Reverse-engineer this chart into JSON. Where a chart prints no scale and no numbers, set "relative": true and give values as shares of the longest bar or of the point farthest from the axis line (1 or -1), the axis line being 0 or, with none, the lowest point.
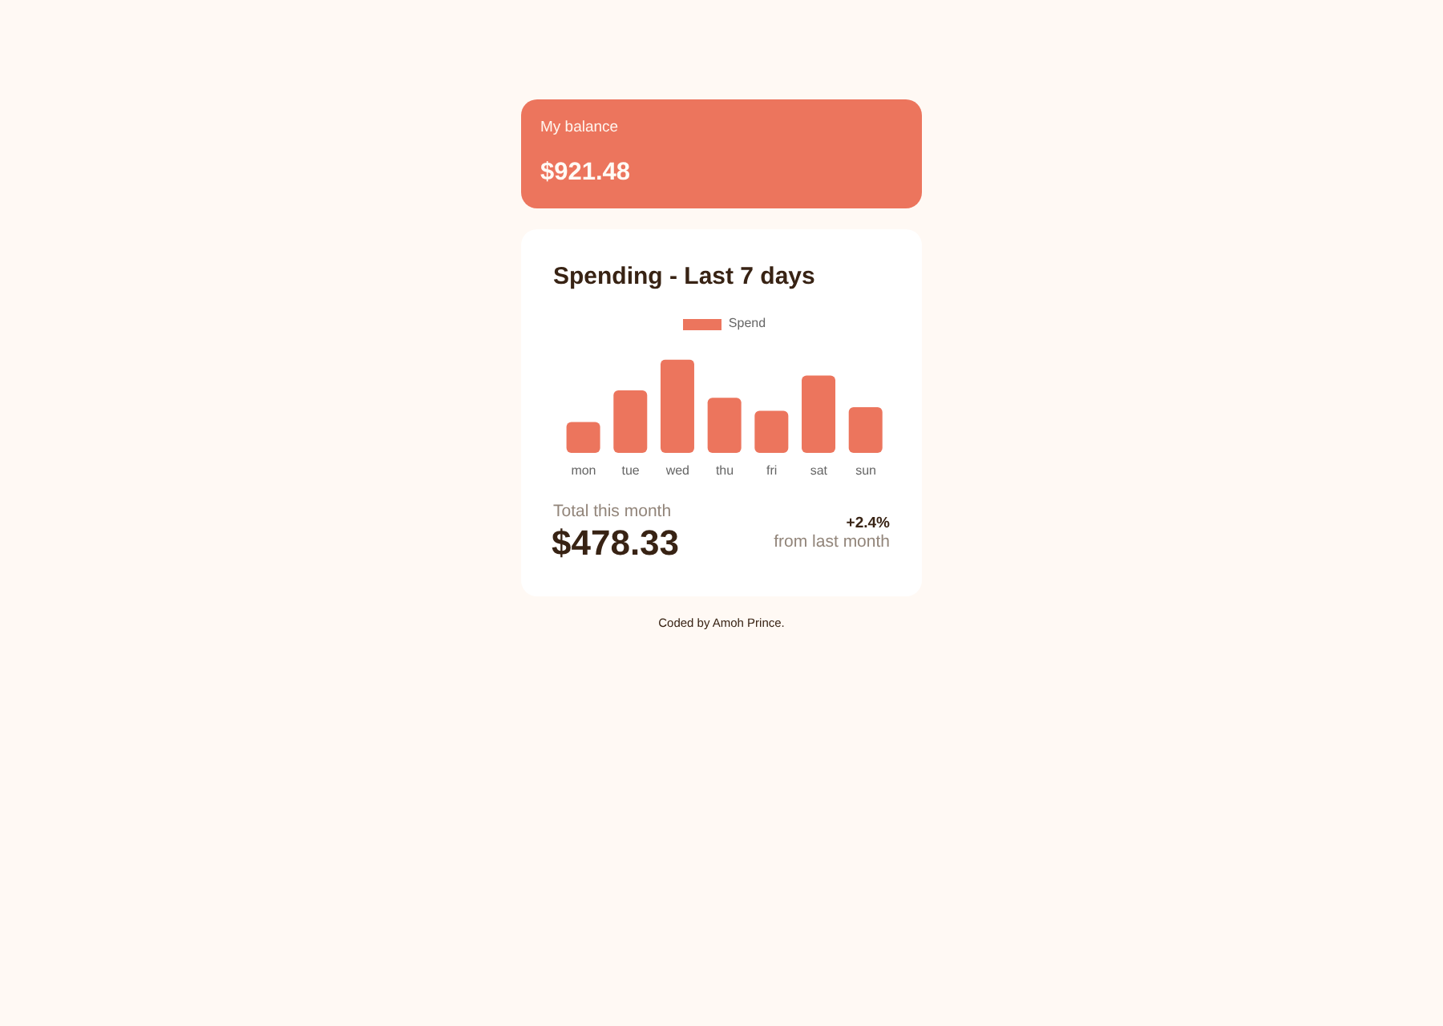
{
  "chart_data": [
    {
      "type": "other",
      "title": "My balance",
      "annotations": [
        "$921.48"
      ]
    },
    {
      "type": "bar",
      "title": "Spending - Last 7 days",
      "categories": [
        "mon",
        "tue",
        "wed",
        "thu",
        "fri",
        "sat",
        "sun"
      ],
      "series": [
        {
          "name": "Spend",
          "color": "#ec755d",
          "values": [
            0.33,
            0.67,
            1,
            0.59,
            0.45,
            0.83,
            0.49
          ]
        }
      ],
      "relative": true,
      "legend": "top",
      "annotations": [
        "Total this month",
        "$478.33",
        "+2.4%",
        "from last month",
        "Coded by Amoh Prince."
      ]
    }
  ]
}
